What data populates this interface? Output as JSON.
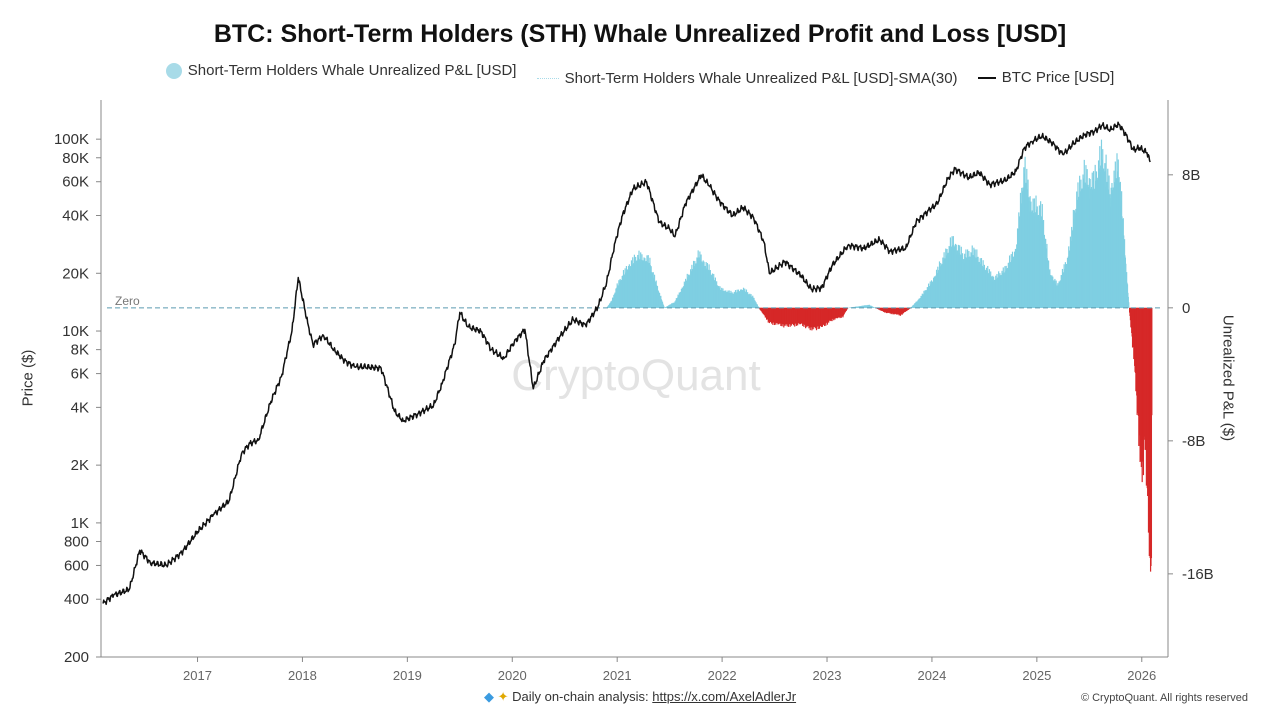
{
  "header": {
    "title": "BTC: Short-Term Holders (STH) Whale Unrealized Profit and Loss [USD]"
  },
  "legend": {
    "items": [
      {
        "label": "Short-Term Holders Whale Unrealized P&L [USD]",
        "style": "dot",
        "color": "#a8dbe8"
      },
      {
        "label": "Short-Term Holders Whale Unrealized P&L [USD]-SMA(30)",
        "style": "dotted",
        "color": "#a8dbe8"
      },
      {
        "label": "BTC Price [USD]",
        "style": "line",
        "color": "#111111"
      }
    ]
  },
  "watermark": "CryptoQuant",
  "footer": {
    "text": "Daily on-chain analysis: ",
    "link": "https://x.com/AxelAdlerJr",
    "copyright": "© CryptoQuant. All rights reserved"
  },
  "chart_data": {
    "type": "line",
    "xlabel": "",
    "ylabel_left": "Price ($)",
    "ylabel_right": "Unrealized P&L ($)",
    "x_ticks": [
      "2017",
      "2018",
      "2019",
      "2020",
      "2021",
      "2022",
      "2023",
      "2024",
      "2025",
      "2026"
    ],
    "x_range": [
      2016.08,
      2026.25
    ],
    "left_axis": {
      "scale": "log",
      "ylim": [
        200,
        160000
      ],
      "ticks": [
        {
          "label": "100K",
          "value": 100000
        },
        {
          "label": "80K",
          "value": 80000
        },
        {
          "label": "60K",
          "value": 60000
        },
        {
          "label": "40K",
          "value": 40000
        },
        {
          "label": "20K",
          "value": 20000
        },
        {
          "label": "10K",
          "value": 10000
        },
        {
          "label": "8K",
          "value": 8000
        },
        {
          "label": "6K",
          "value": 6000
        },
        {
          "label": "4K",
          "value": 4000
        },
        {
          "label": "2K",
          "value": 2000
        },
        {
          "label": "1K",
          "value": 1000
        },
        {
          "label": "800",
          "value": 800
        },
        {
          "label": "600",
          "value": 600
        },
        {
          "label": "400",
          "value": 400
        },
        {
          "label": "200",
          "value": 200
        }
      ]
    },
    "right_axis": {
      "scale": "linear",
      "ylim": [
        -21000000000,
        12500000000
      ],
      "ticks": [
        {
          "label": "8B",
          "value": 8000000000
        },
        {
          "label": "0",
          "value": 0
        },
        {
          "label": "-8B",
          "value": -8000000000
        },
        {
          "label": "-16B",
          "value": -16000000000
        }
      ]
    },
    "zero_line_label": "Zero",
    "colors": {
      "profit": "#7fcfe2",
      "loss": "#d62828",
      "price": "#111111",
      "zero": "#5b9bb0"
    },
    "series": [
      {
        "name": "BTC Price [USD]",
        "axis": "left",
        "points": [
          [
            2016.1,
            380
          ],
          [
            2016.2,
            420
          ],
          [
            2016.35,
            450
          ],
          [
            2016.45,
            720
          ],
          [
            2016.55,
            620
          ],
          [
            2016.7,
            600
          ],
          [
            2016.85,
            700
          ],
          [
            2017.0,
            900
          ],
          [
            2017.15,
            1100
          ],
          [
            2017.3,
            1300
          ],
          [
            2017.42,
            2300
          ],
          [
            2017.5,
            2600
          ],
          [
            2017.58,
            2700
          ],
          [
            2017.7,
            4300
          ],
          [
            2017.8,
            5800
          ],
          [
            2017.9,
            10000
          ],
          [
            2017.96,
            19000
          ],
          [
            2018.05,
            11000
          ],
          [
            2018.1,
            8500
          ],
          [
            2018.2,
            9500
          ],
          [
            2018.3,
            8000
          ],
          [
            2018.4,
            7000
          ],
          [
            2018.5,
            6500
          ],
          [
            2018.6,
            6500
          ],
          [
            2018.75,
            6400
          ],
          [
            2018.88,
            3800
          ],
          [
            2018.96,
            3400
          ],
          [
            2019.1,
            3700
          ],
          [
            2019.25,
            4100
          ],
          [
            2019.33,
            5300
          ],
          [
            2019.45,
            8500
          ],
          [
            2019.5,
            12500
          ],
          [
            2019.58,
            10500
          ],
          [
            2019.7,
            10000
          ],
          [
            2019.8,
            8000
          ],
          [
            2019.92,
            7200
          ],
          [
            2020.02,
            8800
          ],
          [
            2020.12,
            10200
          ],
          [
            2020.2,
            5000
          ],
          [
            2020.3,
            7000
          ],
          [
            2020.45,
            9300
          ],
          [
            2020.58,
            11500
          ],
          [
            2020.7,
            10700
          ],
          [
            2020.82,
            13500
          ],
          [
            2020.9,
            18000
          ],
          [
            2020.98,
            29000
          ],
          [
            2021.05,
            40000
          ],
          [
            2021.15,
            55000
          ],
          [
            2021.28,
            60000
          ],
          [
            2021.4,
            37000
          ],
          [
            2021.5,
            34000
          ],
          [
            2021.55,
            31000
          ],
          [
            2021.65,
            46000
          ],
          [
            2021.8,
            65000
          ],
          [
            2021.88,
            57000
          ],
          [
            2021.98,
            47000
          ],
          [
            2022.1,
            40000
          ],
          [
            2022.2,
            44000
          ],
          [
            2022.3,
            39000
          ],
          [
            2022.4,
            29000
          ],
          [
            2022.45,
            20000
          ],
          [
            2022.6,
            23000
          ],
          [
            2022.75,
            19500
          ],
          [
            2022.85,
            16500
          ],
          [
            2022.95,
            16800
          ],
          [
            2023.05,
            22000
          ],
          [
            2023.2,
            28000
          ],
          [
            2023.35,
            27000
          ],
          [
            2023.5,
            30000
          ],
          [
            2023.6,
            26000
          ],
          [
            2023.75,
            27000
          ],
          [
            2023.85,
            37000
          ],
          [
            2023.98,
            43000
          ],
          [
            2024.05,
            46000
          ],
          [
            2024.15,
            62000
          ],
          [
            2024.22,
            70000
          ],
          [
            2024.35,
            63000
          ],
          [
            2024.45,
            67000
          ],
          [
            2024.55,
            58000
          ],
          [
            2024.7,
            61000
          ],
          [
            2024.8,
            68000
          ],
          [
            2024.88,
            90000
          ],
          [
            2024.95,
            97000
          ],
          [
            2025.05,
            104000
          ],
          [
            2025.15,
            95000
          ],
          [
            2025.25,
            83000
          ],
          [
            2025.35,
            95000
          ],
          [
            2025.45,
            105000
          ],
          [
            2025.55,
            110000
          ],
          [
            2025.62,
            118000
          ],
          [
            2025.7,
            112000
          ],
          [
            2025.78,
            120000
          ],
          [
            2025.85,
            105000
          ],
          [
            2025.92,
            88000
          ],
          [
            2025.98,
            90000
          ],
          [
            2026.05,
            85000
          ],
          [
            2026.08,
            76000
          ]
        ]
      },
      {
        "name": "Short-Term Holders Whale Unrealized P&L [USD]",
        "axis": "right",
        "points": [
          [
            2020.9,
            0
          ],
          [
            2020.95,
            500000000
          ],
          [
            2021.0,
            1500000000
          ],
          [
            2021.1,
            2800000000
          ],
          [
            2021.2,
            3500000000
          ],
          [
            2021.3,
            3300000000
          ],
          [
            2021.38,
            1500000000
          ],
          [
            2021.45,
            0
          ],
          [
            2021.55,
            400000000
          ],
          [
            2021.65,
            1800000000
          ],
          [
            2021.78,
            3600000000
          ],
          [
            2021.88,
            2600000000
          ],
          [
            2021.98,
            1300000000
          ],
          [
            2022.1,
            1000000000
          ],
          [
            2022.2,
            1300000000
          ],
          [
            2022.3,
            700000000
          ],
          [
            2022.35,
            0
          ],
          [
            2022.45,
            -1000000000
          ],
          [
            2022.6,
            -1200000000
          ],
          [
            2022.75,
            -1100000000
          ],
          [
            2022.85,
            -1400000000
          ],
          [
            2022.95,
            -1300000000
          ],
          [
            2023.05,
            -800000000
          ],
          [
            2023.15,
            -600000000
          ],
          [
            2023.2,
            0
          ],
          [
            2023.4,
            200000000
          ],
          [
            2023.55,
            -300000000
          ],
          [
            2023.7,
            -500000000
          ],
          [
            2023.8,
            0
          ],
          [
            2023.9,
            800000000
          ],
          [
            2024.0,
            1800000000
          ],
          [
            2024.1,
            3200000000
          ],
          [
            2024.2,
            4600000000
          ],
          [
            2024.3,
            3500000000
          ],
          [
            2024.4,
            3800000000
          ],
          [
            2024.5,
            2800000000
          ],
          [
            2024.6,
            2000000000
          ],
          [
            2024.7,
            2600000000
          ],
          [
            2024.8,
            4000000000
          ],
          [
            2024.88,
            9500000000
          ],
          [
            2024.95,
            7000000000
          ],
          [
            2025.05,
            6500000000
          ],
          [
            2025.12,
            2500000000
          ],
          [
            2025.2,
            1500000000
          ],
          [
            2025.3,
            3500000000
          ],
          [
            2025.38,
            7500000000
          ],
          [
            2025.45,
            9000000000
          ],
          [
            2025.55,
            8500000000
          ],
          [
            2025.62,
            10500000000
          ],
          [
            2025.7,
            8000000000
          ],
          [
            2025.78,
            9800000000
          ],
          [
            2025.83,
            5000000000
          ],
          [
            2025.88,
            0
          ],
          [
            2025.92,
            -3000000000
          ],
          [
            2025.96,
            -7000000000
          ],
          [
            2026.0,
            -12000000000
          ],
          [
            2026.03,
            -8500000000
          ],
          [
            2026.06,
            -14500000000
          ],
          [
            2026.09,
            -20000000000
          ],
          [
            2026.1,
            0
          ]
        ]
      }
    ],
    "grid": false,
    "legend_position": "top-center"
  }
}
